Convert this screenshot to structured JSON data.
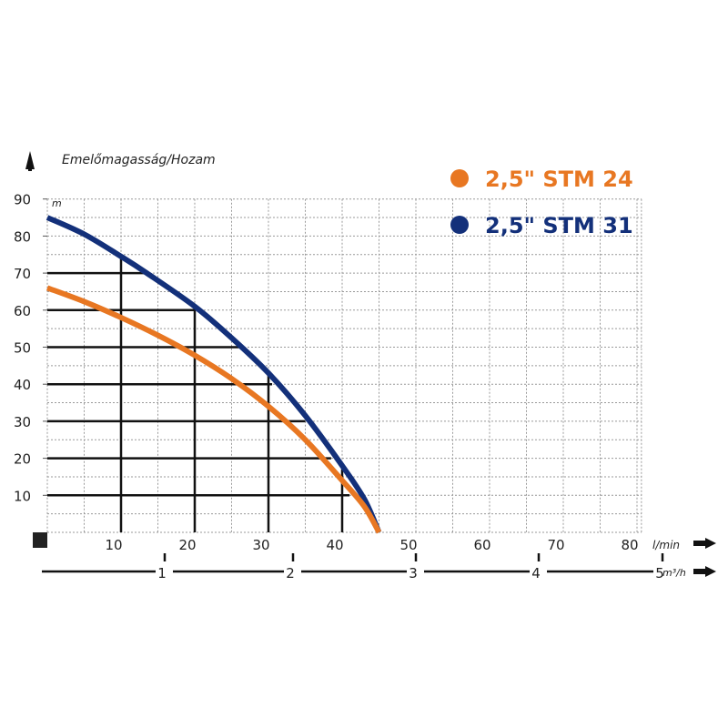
{
  "chart_data": {
    "type": "line",
    "title": "Emelőmagasság/Hozam",
    "ylabel_unit": "m",
    "xlabel_unit": "l/min",
    "x2label_unit": "m³/h",
    "xlim": [
      0,
      82
    ],
    "ylim": [
      0,
      90
    ],
    "grid": true,
    "legend_placement": "top-right",
    "x_ticks": [
      10,
      20,
      30,
      40,
      50,
      60,
      70,
      80
    ],
    "y_ticks": [
      10,
      20,
      30,
      40,
      50,
      60,
      70,
      80,
      90
    ],
    "x2_ticks": [
      1,
      2,
      3,
      4,
      5
    ],
    "series": [
      {
        "name": "2,5\" STM 24",
        "color": "#e87722",
        "x": [
          0,
          5,
          10,
          15,
          20,
          25,
          30,
          35,
          40,
          43,
          45
        ],
        "y": [
          66,
          62.3,
          58,
          53.2,
          47.8,
          41.5,
          34,
          25,
          14,
          7,
          0
        ]
      },
      {
        "name": "2,5\" STM 31",
        "color": "#13307a",
        "x": [
          0,
          5,
          10,
          13.5,
          20,
          25,
          30,
          35,
          40,
          43,
          45
        ],
        "y": [
          85,
          80.5,
          74.5,
          70,
          61,
          52.5,
          43,
          31.5,
          18,
          9,
          0
        ]
      }
    ],
    "reference_lines": {
      "horizontal": [
        {
          "y": 70,
          "to_x": 13.5
        },
        {
          "y": 60,
          "to_x": 20
        },
        {
          "y": 50,
          "to_x": 26
        },
        {
          "y": 40,
          "to_x": 30.5
        },
        {
          "y": 30,
          "to_x": 35
        },
        {
          "y": 20,
          "to_x": 38.5
        },
        {
          "y": 10,
          "to_x": 41
        }
      ],
      "vertical": [
        {
          "x": 10,
          "to_y": 74.5
        },
        {
          "x": 20,
          "to_y": 61
        },
        {
          "x": 30,
          "to_y": 43
        },
        {
          "x": 40,
          "to_y": 17
        }
      ]
    }
  }
}
